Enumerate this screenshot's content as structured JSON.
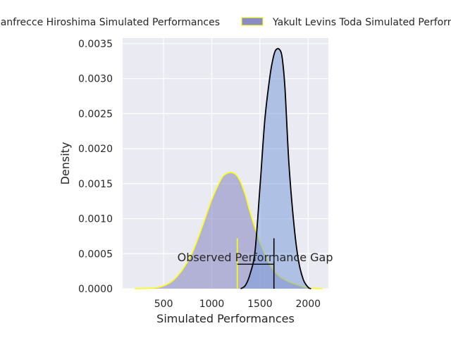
{
  "chart_data": {
    "type": "area",
    "xlabel": "Simulated Performances",
    "ylabel": "Density",
    "xlim": [
      75,
      2210
    ],
    "ylim": [
      0,
      0.00358
    ],
    "x_ticks": [
      500,
      1000,
      1500,
      2000
    ],
    "x_tick_labels": [
      "500",
      "1000",
      "1500",
      "2000"
    ],
    "y_ticks": [
      0,
      0.0005,
      0.001,
      0.0015,
      0.002,
      0.0025,
      0.003,
      0.0035
    ],
    "y_tick_labels": [
      "0.0000",
      "0.0005",
      "0.0010",
      "0.0015",
      "0.0020",
      "0.0025",
      "0.0030",
      "0.0035"
    ],
    "grid": true,
    "legend_position": "top",
    "colors": {
      "plot_background": "#eaeaf2",
      "grid": "#ffffff",
      "series_1_fill": "#8c8cc4",
      "series_1_edge": "#ffff00",
      "series_2_fill": "#7b9ed8",
      "series_2_edge": "#000000"
    },
    "series": [
      {
        "name": "Sanfrecce Hiroshima Simulated Performances",
        "legend_label": "Sanfrecce Hiroshima Simulated Performances",
        "x": [
          200,
          400,
          500,
          600,
          700,
          800,
          900,
          1000,
          1100,
          1150,
          1200,
          1250,
          1300,
          1350,
          1400,
          1500,
          1600,
          1700,
          1800,
          1900,
          2000,
          2150
        ],
        "y": [
          0,
          1e-05,
          4e-05,
          0.00012,
          0.00028,
          0.00052,
          0.00088,
          0.00127,
          0.00157,
          0.00164,
          0.00166,
          0.00163,
          0.00152,
          0.00133,
          0.00108,
          0.00066,
          0.00035,
          0.00018,
          0.0001,
          5e-05,
          1e-05,
          0
        ]
      },
      {
        "name": "Yakult Levins Toda Simulated Performances",
        "legend_label": "Yakult Levins Toda Simulated Performances",
        "x": [
          1300,
          1350,
          1400,
          1450,
          1500,
          1550,
          1600,
          1630,
          1660,
          1700,
          1730,
          1760,
          1800,
          1850,
          1900,
          1950,
          2000,
          2030
        ],
        "y": [
          0,
          5e-05,
          0.00022,
          0.00055,
          0.00145,
          0.0024,
          0.003,
          0.00325,
          0.0034,
          0.00342,
          0.0033,
          0.00285,
          0.0018,
          0.00095,
          0.0004,
          0.00013,
          2e-05,
          0
        ]
      }
    ],
    "annotations": [
      {
        "text": "Observed Performance Gap",
        "x": 1450,
        "y": 0.00038,
        "gap_from_x": 1265,
        "gap_to_x": 1645,
        "gap_y": 0.00035,
        "vertical_lines": [
          {
            "x": 1265,
            "y_top": 0.00072,
            "color": "#ffff00"
          },
          {
            "x": 1645,
            "y_top": 0.00072,
            "color": "#000000"
          }
        ]
      }
    ]
  }
}
